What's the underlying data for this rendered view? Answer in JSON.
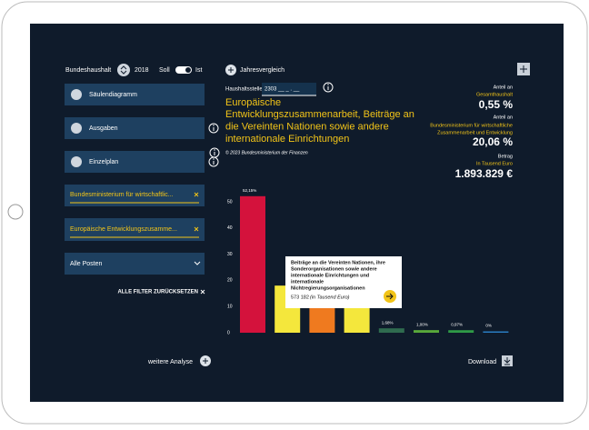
{
  "header": {
    "budget_label": "Bundeshaushalt",
    "year": "2018",
    "soll": "Soll",
    "ist": "Ist",
    "compare": "Jahresvergleich"
  },
  "filters": {
    "chart_type": "Säulendiagramm",
    "side": "Ausgaben",
    "scope": "Einzelplan",
    "ministry": "Bundesministerium für wirtschaftlic...",
    "chapter": "Europäische Entwicklungszusamme...",
    "posts": "Alle Posten",
    "reset": "ALLE FILTER ZURÜCKSETZEN"
  },
  "search": {
    "label": "Haushaltsstelle:",
    "value": "2303 __ _ . __"
  },
  "title": {
    "lines": [
      "Europäische",
      "Entwicklungszusammenarbeit, Beiträge an",
      "die Vereinten Nationen sowie andere",
      "internationale Einrichtungen"
    ],
    "copyright": "© 2023 Bundesministerium der Finanzen"
  },
  "stats": {
    "share1_label": "Anteil an",
    "share1_of": "Gesamthaushalt",
    "share1_value": "0,55 %",
    "share2_label": "Anteil an",
    "share2_of": [
      "Bundesministerium für wirtschaftliche",
      "Zusammenarbeit und Entwicklung"
    ],
    "share2_value": "20,06 %",
    "amount_label": "Betrag",
    "amount_unit": "In Tausend Euro",
    "amount_value": "1.893.829 €"
  },
  "chart_data": {
    "type": "bar",
    "values": [
      52.15,
      18,
      10,
      11,
      1.68,
      1.0,
      0.97,
      0
    ],
    "value_labels": [
      "52,15%",
      null,
      null,
      null,
      "1,68%",
      "1,00%",
      "0,97%",
      "0%"
    ],
    "colors": [
      "#d4123c",
      "#f4e73c",
      "#ef7a1f",
      "#f4e73c",
      "#2f6b4f",
      "#58a83a",
      "#2f9a47",
      "#2a7cc2"
    ],
    "ylim": [
      0,
      50
    ],
    "yticks": [
      0,
      10,
      20,
      30,
      40,
      50
    ]
  },
  "tooltip": {
    "lines": [
      "Beiträge an die Vereinten Nationen, ihre",
      "Sonderorganisationen sowie andere",
      "internationale Einrichtungen und",
      "internationale",
      "Nichtregierungsorganisationen"
    ],
    "amount": "573 182",
    "unit": "(in Tausend Euro)"
  },
  "footer": {
    "analysis": "weitere Analyse",
    "download": "Download"
  }
}
